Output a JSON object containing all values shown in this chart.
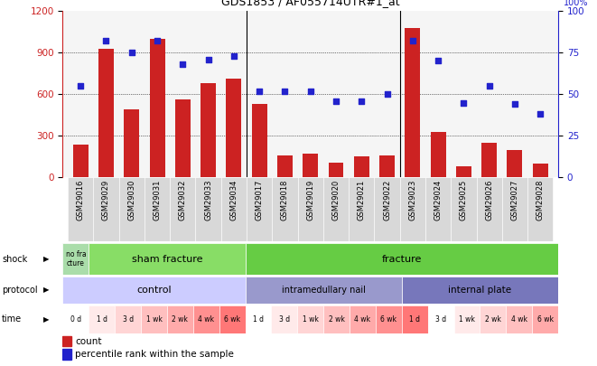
{
  "title": "GDS1853 / AF055714UTR#1_at",
  "samples": [
    "GSM29016",
    "GSM29029",
    "GSM29030",
    "GSM29031",
    "GSM29032",
    "GSM29033",
    "GSM29034",
    "GSM29017",
    "GSM29018",
    "GSM29019",
    "GSM29020",
    "GSM29021",
    "GSM29022",
    "GSM29023",
    "GSM29024",
    "GSM29025",
    "GSM29026",
    "GSM29027",
    "GSM29028"
  ],
  "counts": [
    240,
    930,
    490,
    1000,
    560,
    680,
    710,
    530,
    160,
    170,
    110,
    150,
    160,
    1080,
    330,
    80,
    250,
    200,
    100
  ],
  "percentile": [
    55,
    82,
    75,
    82,
    68,
    71,
    73,
    52,
    52,
    52,
    46,
    46,
    50,
    82,
    70,
    45,
    55,
    44,
    38
  ],
  "ylim_left": [
    0,
    1200
  ],
  "ylim_right": [
    0,
    100
  ],
  "yticks_left": [
    0,
    300,
    600,
    900,
    1200
  ],
  "yticks_right": [
    0,
    25,
    50,
    75,
    100
  ],
  "bar_color": "#cc2222",
  "dot_color": "#2222cc",
  "plot_bg": "#f5f5f5",
  "shock_no_fracture_color": "#aaddaa",
  "shock_sham_color": "#88dd66",
  "shock_fracture_color": "#66cc44",
  "protocol_control_color": "#ccccff",
  "protocol_nail_color": "#9999cc",
  "protocol_plate_color": "#7777bb",
  "time_colors": [
    "#ffffff",
    "#ffeeee",
    "#ffdddd",
    "#ffcccc",
    "#ffbbbb",
    "#ffaaaa",
    "#ff9999"
  ],
  "time_labels": [
    "0 d",
    "1 d",
    "3 d",
    "1 wk",
    "2 wk",
    "4 wk",
    "6 wk",
    "1 d",
    "3 d",
    "1 wk",
    "2 wk",
    "4 wk",
    "6 wk",
    "1 d",
    "3 d",
    "1 wk",
    "2 wk",
    "4 wk",
    "6 wk"
  ]
}
